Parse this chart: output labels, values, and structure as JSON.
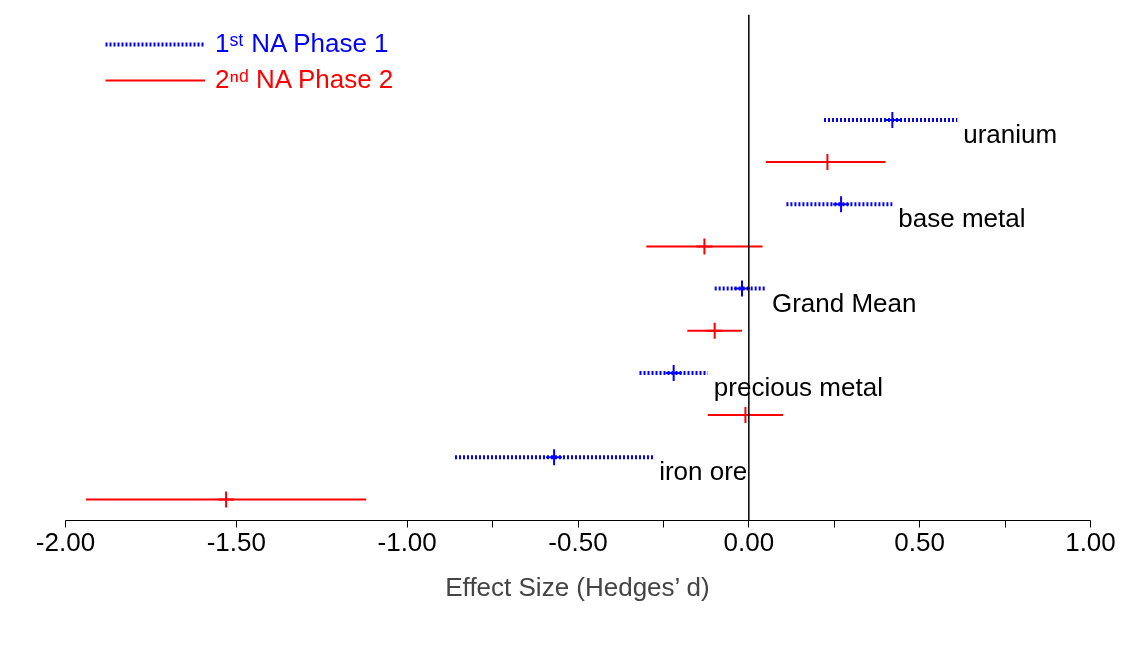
{
  "chart_data": {
    "type": "scatter",
    "orientation": "horizontal",
    "categories": [
      null,
      null,
      "uranium",
      null,
      "base metal",
      null,
      "Grand Mean",
      null,
      "precious metal",
      null,
      "iron ore",
      null
    ],
    "xlabel": "Effect Size (Hedges’ d)",
    "xlim": [
      -2.0,
      1.0
    ],
    "xticks": [
      {
        "value": -2.0,
        "label": "-2.00"
      },
      {
        "value": -1.5,
        "label": "-1.50"
      },
      {
        "value": -1.0,
        "label": "-1.00"
      },
      {
        "value": -0.75,
        "label": null
      },
      {
        "value": -0.5,
        "label": "-0.50"
      },
      {
        "value": -0.25,
        "label": null
      },
      {
        "value": 0,
        "label": "0.00"
      },
      {
        "value": 0.25,
        "label": null
      },
      {
        "value": 0.5,
        "label": "0.50"
      },
      {
        "value": 0.75,
        "label": null
      },
      {
        "value": 1.0,
        "label": "1.00"
      }
    ],
    "tick_labels": "x",
    "marker": "cross",
    "legend": "top left",
    "ref_lines": [
      {
        "axis": "x",
        "value": 0,
        "color": "#000000"
      }
    ],
    "series": [
      {
        "name": "1ˢᵗ NA Phase 1",
        "color": "#0000ff",
        "line_style": "dotted",
        "values": [
          null,
          null,
          0.42,
          null,
          0.27,
          null,
          -0.02,
          null,
          -0.22,
          null,
          -0.57,
          null
        ],
        "errors": [
          null,
          null,
          [
            0.22,
            0.61
          ],
          null,
          [
            0.11,
            0.42
          ],
          null,
          [
            -0.1,
            0.05
          ],
          null,
          [
            -0.32,
            -0.12
          ],
          null,
          [
            -0.86,
            -0.28
          ],
          null
        ]
      },
      {
        "name": "2ⁿᵈ NA Phase 2",
        "color": "#ff0000",
        "line_style": "solid",
        "values": [
          null,
          null,
          null,
          0.23,
          null,
          -0.13,
          null,
          -0.1,
          null,
          -0.01,
          null,
          -1.53
        ],
        "errors": [
          null,
          null,
          null,
          [
            0.05,
            0.4
          ],
          null,
          [
            -0.3,
            0.04
          ],
          null,
          [
            -0.18,
            -0.02
          ],
          null,
          [
            -0.12,
            0.1
          ],
          null,
          [
            -1.94,
            -1.12
          ]
        ]
      }
    ]
  }
}
